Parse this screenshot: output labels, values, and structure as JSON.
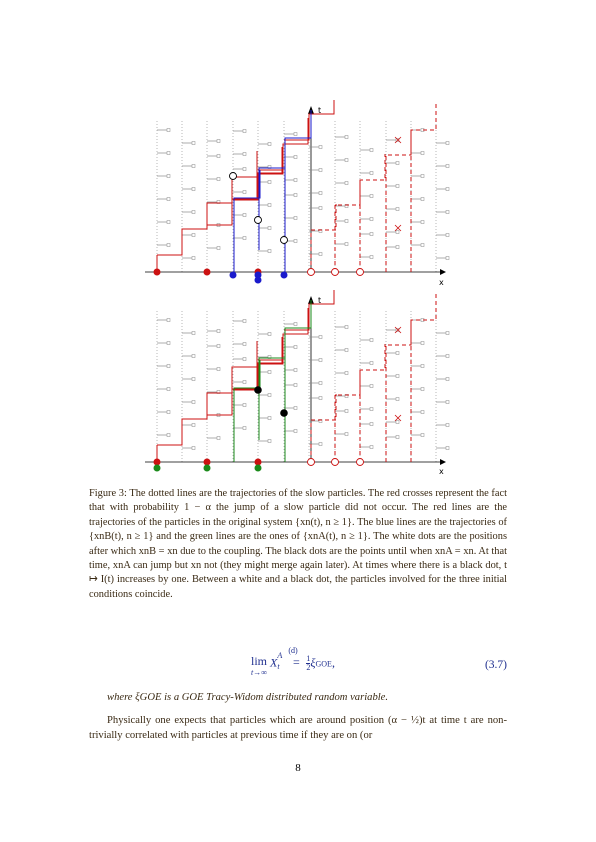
{
  "figure": {
    "top_panel": {
      "x_label": "x",
      "t_label": "t"
    },
    "bottom_panel": {
      "x_label": "x",
      "t_label": "t"
    }
  },
  "caption": {
    "label": "Figure 3:",
    "text": "The dotted lines are the trajectories of the slow particles. The red crosses represent the fact that with probability 1 − α the jump of a slow particle did not occur. The red lines are the trajectories of the particles in the original system {xn(t), n ≥ 1}. The blue lines are the trajectories of {xnB(t), n ≥ 1} and the green lines are the ones of {xnA(t), n ≥ 1}. The white dots are the positions after which xnB = xn due to the coupling. The black dots are the points until when xnA = xn. At that time, xnA can jump but xn not (they might merge again later). At times where there is a black dot, t ↦ I(t) increases by one. Between a white and a black dot, the particles involved for the three initial conditions coincide."
  },
  "equation": {
    "lim": "lim",
    "lim_sub": "t→∞",
    "lhs_var": "X",
    "lhs_sup": "A",
    "lhs_sub": "t",
    "rel_top": "(d)",
    "rel": "=",
    "frac_num": "1",
    "frac_den": "2",
    "rhs": "ξ",
    "rhs_sub": "GOE",
    "trail": ",",
    "number": "(3.7)"
  },
  "where_line": "where ξGOE is a GOE Tracy-Widom distributed random variable.",
  "paragraph": "Physically one expects that particles which are around position (α − ½)t at time t are non-trivially correlated with particles at previous time if they are on (or",
  "page_number": "8",
  "colors": {
    "red": "#cc1111",
    "blue": "#1a1acc",
    "green": "#1a8a1a",
    "gray": "#888888",
    "caption": "#3a2a14"
  }
}
